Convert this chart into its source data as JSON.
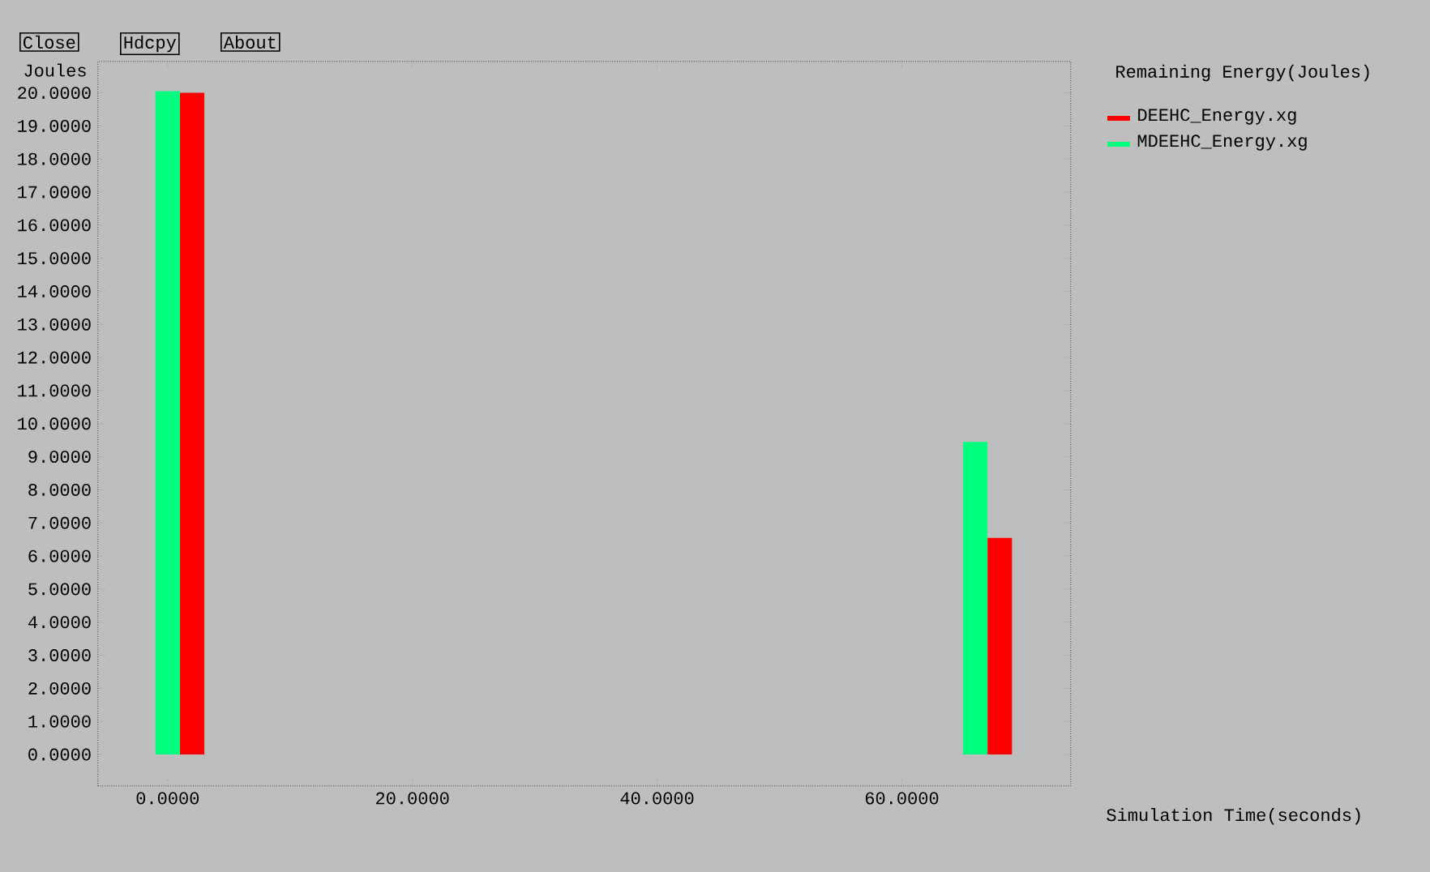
{
  "chart_data": {
    "type": "bar",
    "title": "Remaining Energy(Joules)",
    "ylabel": "Joules",
    "xlabel": "Simulation Time(seconds)",
    "annotations": [
      "Close",
      "Hdcpy",
      "About"
    ],
    "series": [
      {
        "name": "DEEHC_Energy.xg",
        "color": "#ff0000",
        "x": [
          2,
          68
        ],
        "values": [
          20.0,
          6.55
        ]
      },
      {
        "name": "MDEEHC_Energy.xg",
        "color": "#00ff7f",
        "x": [
          0,
          66
        ],
        "values": [
          20.05,
          9.45
        ]
      }
    ],
    "xlim": [
      -5.7,
      73.8
    ],
    "ylim": [
      -0.95,
      20.95
    ],
    "xticks": [
      {
        "value": 0,
        "label": "0.0000"
      },
      {
        "value": 20,
        "label": "20.0000"
      },
      {
        "value": 40,
        "label": "40.0000"
      },
      {
        "value": 60,
        "label": "60.0000"
      }
    ],
    "yticks": [
      {
        "value": 0,
        "label": "0.0000"
      },
      {
        "value": 1,
        "label": "1.0000"
      },
      {
        "value": 2,
        "label": "2.0000"
      },
      {
        "value": 3,
        "label": "3.0000"
      },
      {
        "value": 4,
        "label": "4.0000"
      },
      {
        "value": 5,
        "label": "5.0000"
      },
      {
        "value": 6,
        "label": "6.0000"
      },
      {
        "value": 7,
        "label": "7.0000"
      },
      {
        "value": 8,
        "label": "8.0000"
      },
      {
        "value": 9,
        "label": "9.0000"
      },
      {
        "value": 10,
        "label": "10.0000"
      },
      {
        "value": 11,
        "label": "11.0000"
      },
      {
        "value": 12,
        "label": "12.0000"
      },
      {
        "value": 13,
        "label": "13.0000"
      },
      {
        "value": 14,
        "label": "14.0000"
      },
      {
        "value": 15,
        "label": "15.0000"
      },
      {
        "value": 16,
        "label": "16.0000"
      },
      {
        "value": 17,
        "label": "17.0000"
      },
      {
        "value": 18,
        "label": "18.0000"
      },
      {
        "value": 19,
        "label": "19.0000"
      },
      {
        "value": 20,
        "label": "20.0000"
      }
    ],
    "legend": "top right"
  }
}
